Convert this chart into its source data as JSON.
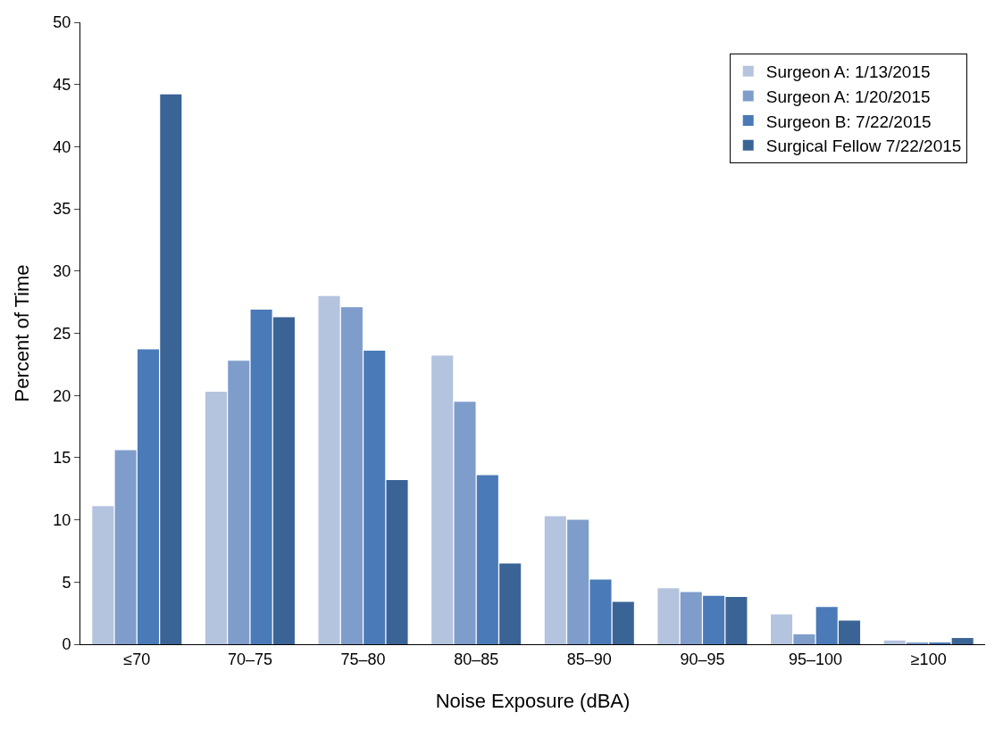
{
  "chart_data": {
    "type": "bar",
    "xlabel": "Noise Exposure (dBA)",
    "ylabel": "Percent of Time",
    "categories": [
      "≤70",
      "70–75",
      "75–80",
      "80–85",
      "85–90",
      "90–95",
      "95–100",
      "≥100"
    ],
    "series": [
      {
        "name": "Surgeon A: 1/13/2015",
        "color": "#b4c3de",
        "values": [
          11.1,
          20.3,
          28.0,
          23.2,
          10.3,
          4.5,
          2.4,
          0.3
        ]
      },
      {
        "name": "Surgeon A: 1/20/2015",
        "color": "#7f9dcb",
        "values": [
          15.6,
          22.8,
          27.1,
          19.5,
          10.0,
          4.2,
          0.8,
          0.1
        ]
      },
      {
        "name": "Surgeon B: 7/22/2015",
        "color": "#4a7ab8",
        "values": [
          23.7,
          26.9,
          23.6,
          13.6,
          5.2,
          3.9,
          3.0,
          0.1
        ]
      },
      {
        "name": "Surgical Fellow 7/22/2015",
        "color": "#3b6496",
        "values": [
          44.2,
          26.3,
          13.2,
          6.5,
          3.4,
          3.8,
          1.9,
          0.5
        ]
      }
    ],
    "ylim": [
      0,
      50
    ],
    "yticks": [
      0,
      5,
      10,
      15,
      20,
      25,
      30,
      35,
      40,
      45,
      50
    ],
    "legend": "top right"
  }
}
